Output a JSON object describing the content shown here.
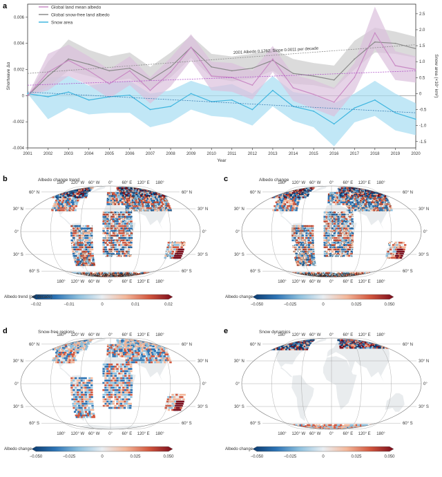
{
  "chart_data": [
    {
      "panel": "a",
      "type": "line",
      "xlabel": "Year",
      "ylabel_left": "Shortwave Δα",
      "ylabel_right": "Snow area (×10⁷ km²)",
      "ylim_left": [
        -0.004,
        0.007
      ],
      "ylim_right": [
        -1.7,
        2.8
      ],
      "yticks_left": [
        "0.006",
        "0.004",
        "0.002",
        "0",
        "-0.002",
        "-0.004"
      ],
      "yticks_left_values": [
        0.006,
        0.004,
        0.002,
        0,
        -0.002,
        -0.004
      ],
      "yticks_right": [
        "2.5",
        "2.0",
        "1.5",
        "1.0",
        "0.5",
        "0",
        "-0.5",
        "-1.0",
        "-1.5"
      ],
      "yticks_right_values": [
        2.5,
        2.0,
        1.5,
        1.0,
        0.5,
        0,
        -0.5,
        -1.0,
        -1.5
      ],
      "x": [
        2001,
        2002,
        2003,
        2004,
        2005,
        2006,
        2007,
        2008,
        2009,
        2010,
        2011,
        2012,
        2013,
        2014,
        2015,
        2016,
        2017,
        2018,
        2019,
        2020
      ],
      "legend": [
        "Global land mean albedo",
        "Global snow-free land albedo",
        "Snow area"
      ],
      "legend_position": "top-left",
      "series": [
        {
          "name": "Global land mean albedo",
          "axis": "left",
          "color": "#c98bc5",
          "band_color": "#dcc0dd",
          "values": [
            0,
            0.0018,
            0.0027,
            0.0019,
            0.0009,
            0.0019,
            0.0004,
            0.0018,
            0.0037,
            0.0015,
            0.0014,
            0.0008,
            0.0028,
            0.0006,
            0.0001,
            -0.0005,
            0.0014,
            0.0048,
            0.0023,
            0.002
          ],
          "lower": [
            0,
            0.0004,
            0.0015,
            0.0008,
            -0.0002,
            0.0008,
            -0.0006,
            0.0007,
            0.0027,
            0.0004,
            0.0003,
            -0.0003,
            0.0018,
            -0.0004,
            -0.001,
            -0.0016,
            0.0003,
            0.0036,
            0.0012,
            0.001
          ],
          "upper": [
            0,
            0.0032,
            0.0039,
            0.003,
            0.002,
            0.003,
            0.0014,
            0.0029,
            0.0047,
            0.0026,
            0.0025,
            0.0019,
            0.0038,
            0.0016,
            0.0012,
            0.0006,
            0.0025,
            0.0068,
            0.0034,
            0.003
          ]
        },
        {
          "name": "Global snow-free land albedo",
          "axis": "left",
          "color": "#8a8a8a",
          "band_color": "#cfcfcf",
          "values": [
            0,
            0.0015,
            0.0028,
            0.0024,
            0.0019,
            0.0021,
            0.0012,
            0.0022,
            0.0037,
            0.0022,
            0.0019,
            0.0021,
            0.0027,
            0.0017,
            0.0015,
            0.0012,
            0.0028,
            0.0041,
            0.004,
            0.0036
          ],
          "lower": [
            0,
            0.0007,
            0.0019,
            0.0015,
            0.0011,
            0.0013,
            0.0005,
            0.0014,
            0.0029,
            0.0014,
            0.0011,
            0.0013,
            0.0019,
            0.0009,
            0.0008,
            0.0005,
            0.002,
            0.0033,
            0.0032,
            0.0029
          ],
          "upper": [
            0,
            0.0026,
            0.0043,
            0.0035,
            0.003,
            0.0033,
            0.0022,
            0.0033,
            0.0046,
            0.0032,
            0.003,
            0.0032,
            0.0036,
            0.0028,
            0.0025,
            0.0023,
            0.0042,
            0.0052,
            0.0049,
            0.0045
          ]
        },
        {
          "name": "Snow area",
          "axis": "right",
          "color": "#3fb6df",
          "band_color": "#a7ddf2",
          "values": [
            0,
            -0.1,
            0.05,
            -0.2,
            -0.1,
            -0.05,
            -0.5,
            -0.4,
            0.0,
            -0.25,
            -0.2,
            -0.5,
            0.1,
            -0.4,
            -0.55,
            -0.95,
            -0.45,
            -0.2,
            -0.6,
            -0.8
          ],
          "lower": [
            0,
            -0.8,
            -0.45,
            -0.65,
            -0.6,
            -0.6,
            -1.05,
            -0.9,
            -0.5,
            -0.7,
            -0.75,
            -1.0,
            -0.4,
            -0.85,
            -1.05,
            -1.65,
            -0.9,
            -0.7,
            -1.15,
            -1.3
          ],
          "upper": [
            0,
            0.5,
            0.55,
            0.25,
            0.35,
            0.4,
            0.0,
            0.1,
            0.4,
            0.2,
            0.3,
            0.0,
            0.55,
            0.05,
            -0.05,
            -0.3,
            0.0,
            0.4,
            0.0,
            -0.3
          ]
        }
      ],
      "trendlines": [
        {
          "axis": "left",
          "color": "#8a8a8a",
          "start": 0.0017,
          "end": 0.0039
        },
        {
          "axis": "left",
          "color": "#b050c8",
          "start": 0.0008,
          "end": 0.0019
        },
        {
          "axis": "right",
          "color": "#3b7fb5",
          "start": 0.05,
          "end": -0.6
        }
      ],
      "annotations": [
        "2001 Albedo 0.1762, Slope 0.0011 per decade"
      ]
    },
    {
      "panel": "b",
      "type": "heatmap",
      "title": "Albedo change trend",
      "colorbar_label": "Albedo trend (per decade)",
      "colorbar_ticks": [
        "−0.02",
        "−0.01",
        "0",
        "0.01",
        "0.02"
      ],
      "vmin": -0.02,
      "vmax": 0.02
    },
    {
      "panel": "c",
      "type": "heatmap",
      "title": "Albedo change",
      "colorbar_label": "Albedo change",
      "colorbar_ticks": [
        "−0.050",
        "−0.025",
        "0",
        "0.025",
        "0.050"
      ],
      "vmin": -0.05,
      "vmax": 0.05
    },
    {
      "panel": "d",
      "type": "heatmap",
      "title": "Snow-free regions",
      "colorbar_label": "Albedo change",
      "colorbar_ticks": [
        "−0.050",
        "−0.025",
        "0",
        "0.025",
        "0.050"
      ],
      "vmin": -0.05,
      "vmax": 0.05
    },
    {
      "panel": "e",
      "type": "heatmap",
      "title": "Snow dynamics",
      "colorbar_label": "Albedo change",
      "colorbar_ticks": [
        "−0.050",
        "−0.025",
        "0",
        "0.025",
        "0.050"
      ],
      "vmin": -0.05,
      "vmax": 0.05
    }
  ],
  "map_labels": {
    "lon_top": [
      "180°",
      "120° W",
      "60° W",
      "0°",
      "60° E",
      "120° E",
      "180°"
    ],
    "lat_left": [
      "60° N",
      "30° N",
      "0°",
      "30° S",
      "60° S"
    ],
    "lat_right": [
      "60° N",
      "30° N",
      "0°",
      "30° S",
      "60° S"
    ]
  },
  "colors": {
    "diverging": [
      "#0b3a6e",
      "#2c73b4",
      "#8ec0de",
      "#e9eef2",
      "#f3b79a",
      "#d2573e",
      "#7a0c1c"
    ],
    "land": "#e9ecee",
    "graticule": "#9a9a9a"
  }
}
